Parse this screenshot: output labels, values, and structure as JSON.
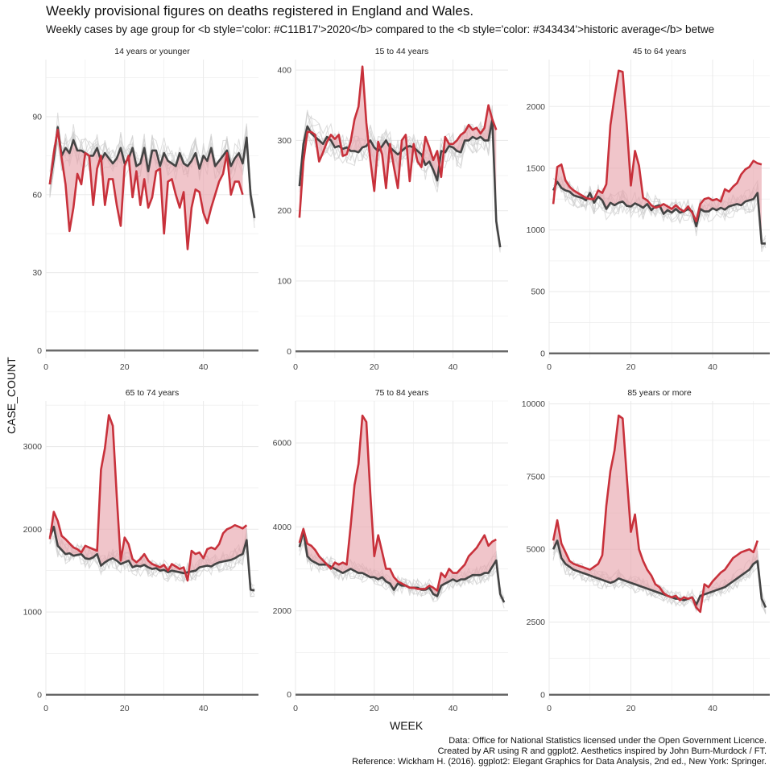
{
  "title": "Weekly provisional figures on deaths registered in England and Wales.",
  "subtitle": "Weekly cases by age group for <b style='color: #C11B17'>2020</b> compared to the <b style='color: #343434'>historic average</b> betwe",
  "caption": [
    "Data: Office for National Statistics licensed under the Open Government Licence.",
    "Created by AR using R and ggplot2. Aesthetics inspired by John Burn-Murdock / FT.",
    "Reference: Wickham H. (2016). ggplot2: Elegant Graphics for Data Analysis, 2nd ed., New York: Springer."
  ],
  "colors": {
    "current": "#c8313b",
    "average": "#444444",
    "ribbon": "#e8a6ae",
    "history": "#cfcfcf",
    "grid": "#ebebeb",
    "baseline": "#666666"
  },
  "chart_data": {
    "type": "line",
    "xlabel": "WEEK",
    "ylabel": "CASE_COUNT",
    "xlim": [
      0,
      54
    ],
    "xticks": [
      0,
      20,
      40
    ],
    "panels": [
      {
        "strip": "14 years or younger",
        "ylim": [
          -3,
          112
        ],
        "yticks": [
          0,
          30,
          60,
          90
        ],
        "series": [
          {
            "values": [
              64,
              74,
              86,
              75,
              78,
              76,
              81,
              77,
              77,
              76,
              75,
              75,
              78,
              73,
              76,
              74,
              72,
              74,
              78,
              72,
              74,
              78,
              71,
              72,
              78,
              69,
              77,
              77,
              71,
              76,
              73,
              72,
              71,
              76,
              72,
              71,
              73,
              76,
              70,
              75,
              73,
              78,
              71,
              73,
              75,
              77,
              71,
              74,
              76,
              72,
              82,
              60,
              51
            ]
          },
          {
            "values": [
              64,
              76,
              85,
              74,
              64,
              46,
              55,
              68,
              64,
              76,
              75,
              56,
              70,
              75,
              56,
              66,
              66,
              56,
              48,
              71,
              75,
              59,
              69,
              56,
              66,
              55,
              59,
              69,
              70,
              45,
              65,
              66,
              60,
              55,
              61,
              39,
              55,
              62,
              61,
              53,
              49,
              55,
              60,
              65,
              68,
              76,
              60,
              65,
              65,
              60
            ]
          }
        ]
      },
      {
        "strip": "15 to 44 years",
        "ylim": [
          -10,
          415
        ],
        "yticks": [
          0,
          100,
          200,
          300,
          400
        ],
        "series": [
          {
            "values": [
              235,
              295,
              320,
              310,
              305,
              300,
              295,
              305,
              300,
              290,
              292,
              288,
              290,
              285,
              285,
              283,
              290,
              292,
              300,
              290,
              285,
              292,
              300,
              290,
              285,
              280,
              285,
              290,
              292,
              290,
              285,
              280,
              265,
              270,
              258,
              243,
              285,
              283,
              292,
              290,
              285,
              283,
              300,
              300,
              305,
              302,
              305,
              300,
              300,
              330,
              185,
              148
            ]
          },
          {
            "values": [
              190,
              270,
              312,
              312,
              308,
              270,
              283,
              298,
              308,
              302,
              308,
              278,
              280,
              298,
              330,
              348,
              405,
              325,
              272,
              228,
              298,
              280,
              232,
              295,
              262,
              232,
              300,
              308,
              242,
              295,
              270,
              262,
              305,
              290,
              272,
              285,
              248,
              305,
              295,
              295,
              300,
              308,
              312,
              322,
              315,
              318,
              310,
              318,
              350,
              330,
              315
            ]
          }
        ]
      },
      {
        "strip": "45 to 64 years",
        "ylim": [
          -40,
          2380
        ],
        "yticks": [
          0,
          500,
          1000,
          1500,
          2000
        ],
        "series": [
          {
            "values": [
              1320,
              1390,
              1340,
              1320,
              1310,
              1280,
              1270,
              1260,
              1240,
              1300,
              1220,
              1270,
              1240,
              1170,
              1220,
              1200,
              1220,
              1230,
              1195,
              1190,
              1215,
              1200,
              1180,
              1210,
              1160,
              1190,
              1200,
              1130,
              1160,
              1140,
              1170,
              1140,
              1150,
              1170,
              1150,
              1030,
              1170,
              1150,
              1150,
              1175,
              1160,
              1180,
              1165,
              1190,
              1200,
              1210,
              1200,
              1230,
              1240,
              1250,
              1300,
              890,
              890
            ]
          },
          {
            "values": [
              1210,
              1510,
              1530,
              1400,
              1350,
              1320,
              1300,
              1280,
              1260,
              1250,
              1250,
              1320,
              1300,
              1370,
              1850,
              2080,
              2290,
              2280,
              1850,
              1360,
              1640,
              1520,
              1260,
              1240,
              1200,
              1180,
              1190,
              1210,
              1190,
              1170,
              1200,
              1170,
              1150,
              1190,
              1140,
              1070,
              1210,
              1250,
              1260,
              1240,
              1250,
              1230,
              1330,
              1310,
              1350,
              1380,
              1450,
              1490,
              1510,
              1560,
              1540,
              1530
            ]
          }
        ]
      },
      {
        "strip": "65 to 74 years",
        "ylim": [
          -60,
          3550
        ],
        "yticks": [
          0,
          1000,
          2000,
          3000
        ],
        "series": [
          {
            "values": [
              1900,
              2030,
              1800,
              1750,
              1700,
              1710,
              1680,
              1690,
              1700,
              1650,
              1640,
              1660,
              1700,
              1560,
              1600,
              1630,
              1650,
              1620,
              1580,
              1600,
              1620,
              1540,
              1560,
              1550,
              1570,
              1540,
              1520,
              1530,
              1500,
              1510,
              1480,
              1500,
              1490,
              1480,
              1470,
              1480,
              1490,
              1500,
              1540,
              1550,
              1560,
              1550,
              1580,
              1600,
              1610,
              1620,
              1630,
              1650,
              1680,
              1700,
              1870,
              1270,
              1260
            ]
          },
          {
            "values": [
              1880,
              2210,
              2100,
              1920,
              1880,
              1830,
              1780,
              1760,
              1720,
              1800,
              1780,
              1760,
              1740,
              2720,
              2980,
              3380,
              3250,
              2400,
              1620,
              1900,
              1820,
              1640,
              1600,
              1640,
              1700,
              1620,
              1580,
              1560,
              1540,
              1570,
              1500,
              1580,
              1550,
              1520,
              1540,
              1380,
              1740,
              1700,
              1720,
              1650,
              1760,
              1780,
              1760,
              1820,
              1950,
              2000,
              2020,
              2050,
              2030,
              2010,
              2050
            ]
          }
        ]
      },
      {
        "strip": "75 to 84 years",
        "ylim": [
          -120,
          7000
        ],
        "yticks": [
          0,
          2000,
          4000,
          6000
        ],
        "series": [
          {
            "values": [
              3520,
              3900,
              3300,
              3200,
              3150,
              3100,
              3100,
              3100,
              3050,
              3000,
              2950,
              2900,
              2950,
              3000,
              2950,
              2900,
              2900,
              2850,
              2800,
              2800,
              2750,
              2800,
              2700,
              2650,
              2500,
              2650,
              2600,
              2600,
              2550,
              2550,
              2550,
              2500,
              2500,
              2550,
              2400,
              2350,
              2600,
              2650,
              2700,
              2750,
              2700,
              2750,
              2750,
              2800,
              2850,
              2850,
              2850,
              2900,
              2900,
              3050,
              3200,
              2400,
              2200
            ]
          },
          {
            "values": [
              3620,
              3950,
              3600,
              3550,
              3450,
              3300,
              3200,
              3100,
              3000,
              3150,
              3100,
              3150,
              3100,
              4000,
              5000,
              5500,
              6650,
              6500,
              4800,
              3300,
              3800,
              3400,
              3000,
              3000,
              2800,
              2700,
              2650,
              2600,
              2550,
              2550,
              2520,
              2520,
              2520,
              2600,
              2550,
              2480,
              2900,
              2800,
              3000,
              2900,
              2900,
              3000,
              3100,
              3300,
              3400,
              3500,
              3650,
              3800,
              3550,
              3650,
              3700
            ]
          }
        ]
      },
      {
        "strip": "85 years or more",
        "ylim": [
          -170,
          10100
        ],
        "yticks": [
          0,
          2500,
          5000,
          7500,
          10000
        ],
        "series": [
          {
            "values": [
              5000,
              5300,
              4700,
              4500,
              4400,
              4300,
              4250,
              4200,
              4150,
              4100,
              4050,
              4000,
              3950,
              3900,
              3850,
              3900,
              4000,
              3950,
              3900,
              3850,
              3800,
              3750,
              3700,
              3650,
              3600,
              3550,
              3500,
              3450,
              3400,
              3350,
              3300,
              3300,
              3250,
              3300,
              3350,
              3100,
              3400,
              3450,
              3500,
              3550,
              3600,
              3650,
              3700,
              3800,
              3900,
              4000,
              4100,
              4200,
              4300,
              4500,
              4600,
              3300,
              3000
            ]
          },
          {
            "values": [
              5300,
              6000,
              5200,
              4900,
              4600,
              4500,
              4450,
              4400,
              4350,
              4300,
              4400,
              4500,
              4800,
              6500,
              7700,
              8400,
              9600,
              9500,
              7500,
              5600,
              6200,
              5000,
              4600,
              4300,
              4100,
              3800,
              3700,
              3500,
              3400,
              3350,
              3400,
              3250,
              3350,
              3300,
              3350,
              3000,
              2850,
              3800,
              3700,
              3900,
              4050,
              4200,
              4300,
              4500,
              4700,
              4800,
              4900,
              4950,
              5000,
              4900,
              5300
            ]
          }
        ]
      }
    ]
  }
}
